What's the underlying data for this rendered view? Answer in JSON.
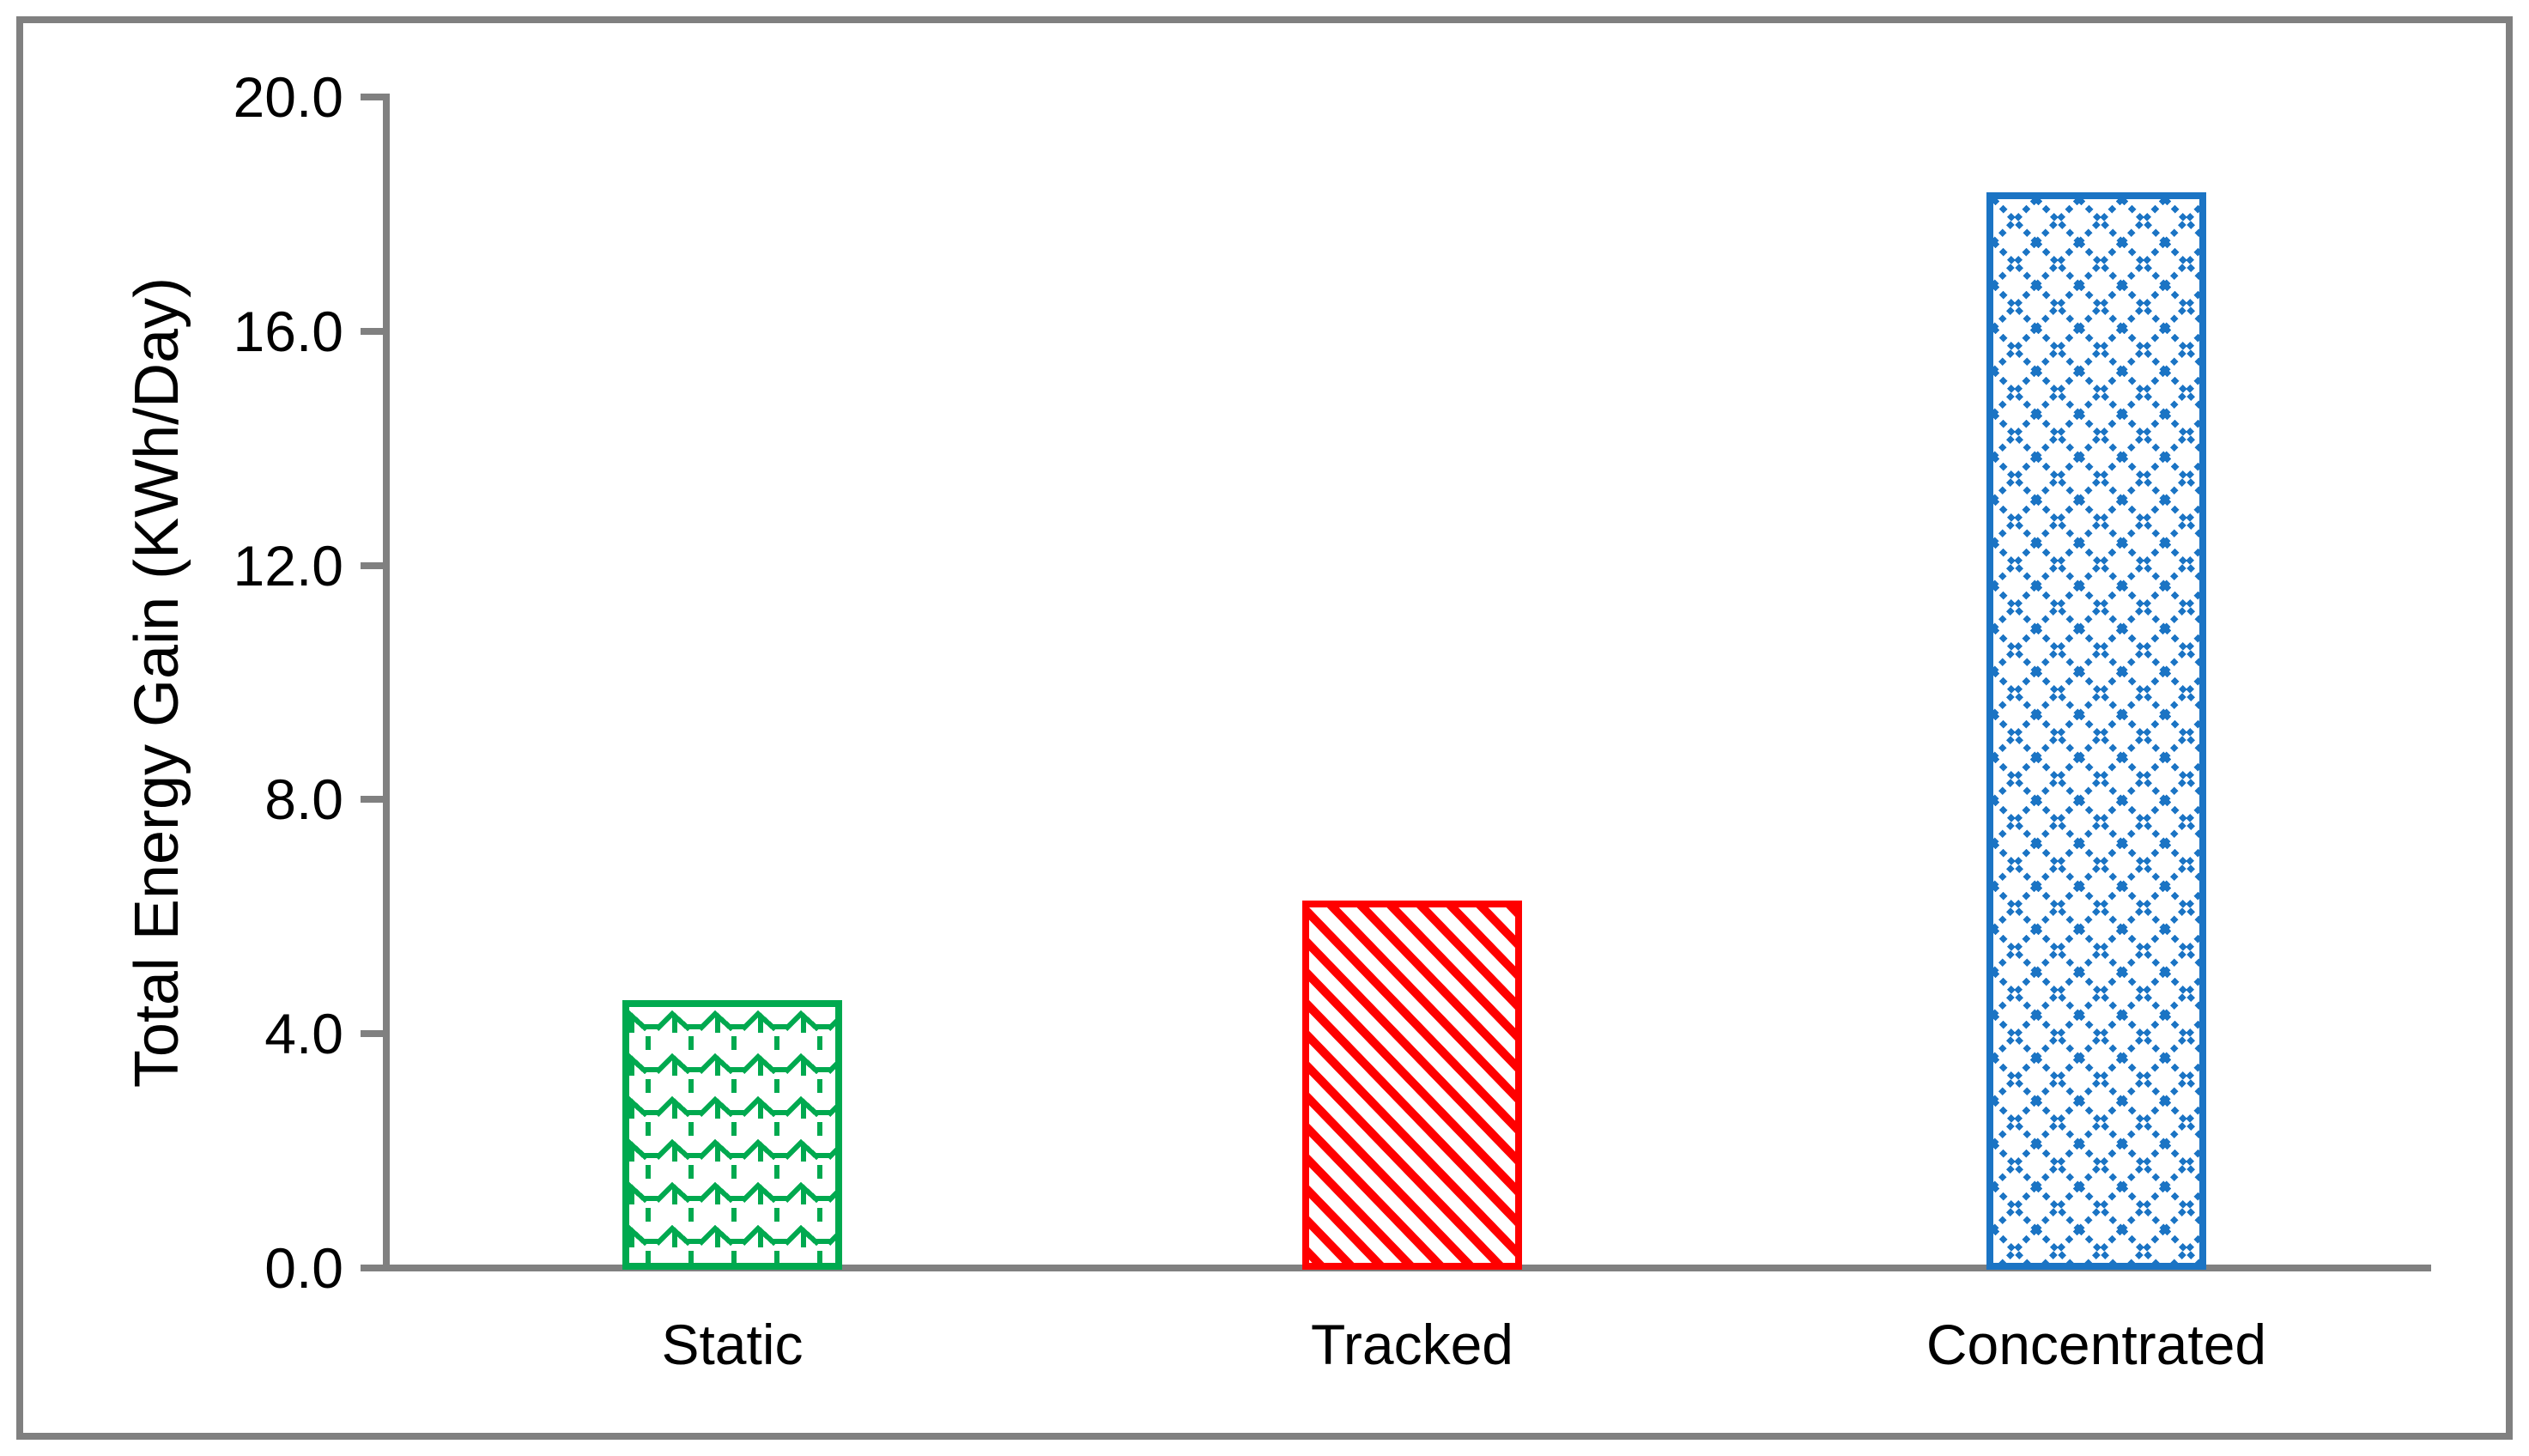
{
  "chart_data": {
    "type": "bar",
    "title": "",
    "categories": [
      "Static",
      "Tracked",
      "Concentrated"
    ],
    "values": [
      4.6,
      6.3,
      18.4
    ],
    "series": [
      {
        "name": "Static",
        "value": 4.6,
        "color": "#00A94F",
        "pattern": "shingle"
      },
      {
        "name": "Tracked",
        "value": 6.3,
        "color": "#FF0000",
        "pattern": "wide-downward-diagonal"
      },
      {
        "name": "Concentrated",
        "value": 18.4,
        "color": "#1B74C4",
        "pattern": "dotted-diamond"
      }
    ],
    "xlabel": "",
    "ylabel": "Total Energy Gain (KWh/Day)",
    "ylim": [
      0,
      20
    ],
    "yticks": [
      {
        "value": 0,
        "label": "0.0"
      },
      {
        "value": 4,
        "label": "4.0"
      },
      {
        "value": 8,
        "label": "8.0"
      },
      {
        "value": 12,
        "label": "12.0"
      },
      {
        "value": 16,
        "label": "16.0"
      },
      {
        "value": 20,
        "label": "20.0"
      }
    ],
    "grid": false,
    "legend": "none",
    "bar_fill_background": "#FFFFFF",
    "axis_color": "#808080",
    "frame_color": "#808080",
    "text_color": "#000000",
    "background": "#FFFFFF"
  }
}
